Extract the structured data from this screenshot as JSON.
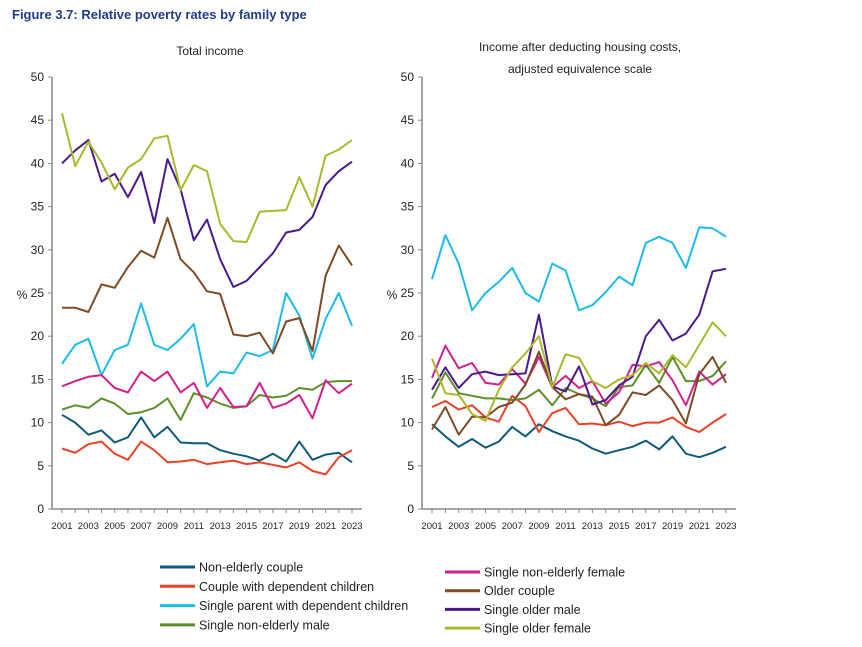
{
  "figure_title": "Figure 3.7: Relative poverty rates by family type",
  "series_styles": [
    {
      "name": "Non-elderly couple",
      "color": "#0f5a7c"
    },
    {
      "name": "Couple with dependent children",
      "color": "#ea4128"
    },
    {
      "name": "Single parent with dependent children",
      "color": "#1fbbe8"
    },
    {
      "name": "Single non-elderly male",
      "color": "#5a8f2a"
    },
    {
      "name": "Single non-elderly female",
      "color": "#d2208c"
    },
    {
      "name": "Older couple",
      "color": "#7d4b25"
    },
    {
      "name": "Single older male",
      "color": "#4b1a8a"
    },
    {
      "name": "Single older female",
      "color": "#a9b92b"
    }
  ],
  "chart_data": [
    {
      "type": "line",
      "title": "Total income",
      "ylabel": "%",
      "ylim": [
        0,
        50
      ],
      "yticks": [
        0,
        5,
        10,
        15,
        20,
        25,
        30,
        35,
        40,
        45,
        50
      ],
      "x": [
        2001,
        2002,
        2003,
        2004,
        2005,
        2006,
        2007,
        2008,
        2009,
        2010,
        2011,
        2012,
        2013,
        2014,
        2015,
        2016,
        2017,
        2018,
        2019,
        2020,
        2021,
        2022,
        2023
      ],
      "xticks": [
        "2001",
        "2003",
        "2005",
        "2007",
        "2009",
        "2011",
        "2013",
        "2015",
        "2017",
        "2019",
        "2021",
        "2023"
      ],
      "grid": false,
      "series": [
        {
          "name": "Non-elderly couple",
          "values": [
            10.9,
            10.0,
            8.6,
            9.1,
            7.7,
            8.3,
            10.6,
            8.3,
            9.5,
            7.7,
            7.6,
            7.6,
            6.8,
            6.4,
            6.1,
            5.6,
            6.4,
            5.5,
            7.8,
            5.7,
            6.3,
            6.5,
            5.4
          ]
        },
        {
          "name": "Couple with dependent children",
          "values": [
            7.0,
            6.5,
            7.5,
            7.8,
            6.4,
            5.7,
            7.8,
            6.8,
            5.4,
            5.5,
            5.7,
            5.2,
            5.4,
            5.6,
            5.2,
            5.4,
            5.1,
            4.8,
            5.4,
            4.4,
            4.0,
            6.0,
            6.8
          ]
        },
        {
          "name": "Single parent with dependent children",
          "values": [
            16.8,
            19.0,
            19.7,
            15.5,
            18.4,
            19.0,
            23.8,
            19.0,
            18.4,
            19.7,
            21.4,
            14.2,
            15.9,
            15.7,
            18.1,
            17.7,
            18.4,
            25.0,
            22.4,
            17.4,
            22.0,
            25.0,
            21.2
          ]
        },
        {
          "name": "Single non-elderly male",
          "values": [
            11.5,
            12.0,
            11.7,
            12.8,
            12.2,
            11.0,
            11.2,
            11.7,
            12.8,
            10.3,
            13.4,
            12.9,
            12.2,
            11.7,
            11.9,
            13.2,
            12.9,
            13.1,
            14.0,
            13.8,
            14.7,
            14.8,
            14.8
          ]
        },
        {
          "name": "Single non-elderly female",
          "values": [
            14.2,
            14.8,
            15.3,
            15.5,
            14.0,
            13.5,
            15.9,
            14.8,
            15.9,
            13.5,
            14.6,
            11.7,
            14.0,
            11.8,
            11.9,
            14.6,
            11.7,
            12.2,
            13.2,
            10.5,
            14.9,
            13.4,
            14.5
          ]
        },
        {
          "name": "Older couple",
          "values": [
            23.3,
            23.3,
            22.8,
            26.0,
            25.6,
            28.0,
            29.9,
            29.1,
            33.7,
            28.9,
            27.4,
            25.2,
            24.9,
            20.2,
            20.0,
            20.4,
            18.0,
            21.7,
            22.1,
            18.3,
            27.0,
            30.5,
            28.2
          ]
        },
        {
          "name": "Single older male",
          "values": [
            40.0,
            41.5,
            42.7,
            37.9,
            38.8,
            36.1,
            39.0,
            33.1,
            40.5,
            37.0,
            31.1,
            33.5,
            28.9,
            25.7,
            26.4,
            28.0,
            29.6,
            32.0,
            32.3,
            33.8,
            37.5,
            39.1,
            40.2
          ]
        },
        {
          "name": "Single older female",
          "values": [
            45.8,
            39.7,
            42.5,
            40.1,
            37.0,
            39.5,
            40.5,
            42.9,
            43.2,
            36.9,
            39.8,
            39.1,
            33.0,
            31.0,
            30.9,
            34.4,
            34.5,
            34.6,
            38.4,
            35.0,
            40.9,
            41.6,
            42.7
          ]
        }
      ]
    },
    {
      "type": "line",
      "title": "Income after deducting housing costs,",
      "title_line2": "adjusted equivalence scale",
      "ylabel": "%",
      "ylim": [
        0,
        50
      ],
      "yticks": [
        0,
        5,
        10,
        15,
        20,
        25,
        30,
        35,
        40,
        45,
        50
      ],
      "x": [
        2001,
        2002,
        2003,
        2004,
        2005,
        2006,
        2007,
        2008,
        2009,
        2010,
        2011,
        2012,
        2013,
        2014,
        2015,
        2016,
        2017,
        2018,
        2019,
        2020,
        2021,
        2022,
        2023
      ],
      "xticks": [
        "2001",
        "2003",
        "2005",
        "2007",
        "2009",
        "2011",
        "2013",
        "2015",
        "2017",
        "2019",
        "2021",
        "2023"
      ],
      "grid": false,
      "series": [
        {
          "name": "Non-elderly couple",
          "values": [
            9.8,
            8.4,
            7.2,
            8.1,
            7.1,
            7.8,
            9.5,
            8.4,
            9.8,
            9.0,
            8.4,
            7.9,
            7.0,
            6.4,
            6.8,
            7.2,
            7.9,
            6.9,
            8.4,
            6.4,
            6.0,
            6.5,
            7.2
          ]
        },
        {
          "name": "Couple with dependent children",
          "values": [
            11.8,
            12.5,
            11.5,
            12.0,
            10.6,
            10.1,
            13.1,
            11.9,
            8.9,
            11.1,
            11.7,
            9.8,
            9.9,
            9.7,
            10.1,
            9.6,
            10.0,
            10.0,
            10.6,
            9.5,
            8.9,
            10.0,
            11.0
          ]
        },
        {
          "name": "Single parent with dependent children",
          "values": [
            26.6,
            31.7,
            28.4,
            23.0,
            25.0,
            26.3,
            27.9,
            25.0,
            24.0,
            28.4,
            27.6,
            23.0,
            23.6,
            25.1,
            26.9,
            25.9,
            30.8,
            31.5,
            30.8,
            27.9,
            32.6,
            32.5,
            31.5
          ]
        },
        {
          "name": "Single non-elderly male",
          "values": [
            12.8,
            15.8,
            13.4,
            13.1,
            12.8,
            12.8,
            12.6,
            12.8,
            13.8,
            12.0,
            14.0,
            13.3,
            12.8,
            11.9,
            14.1,
            14.3,
            16.7,
            14.6,
            17.6,
            14.8,
            14.8,
            15.4,
            17.1
          ]
        },
        {
          "name": "Single non-elderly female",
          "values": [
            15.2,
            18.9,
            16.3,
            16.9,
            14.6,
            14.4,
            16.2,
            14.5,
            17.6,
            14.1,
            15.4,
            14.0,
            14.8,
            12.2,
            13.5,
            16.7,
            16.5,
            17.0,
            14.9,
            12.0,
            15.9,
            14.4,
            15.6
          ]
        },
        {
          "name": "Older couple",
          "values": [
            9.2,
            11.8,
            8.6,
            10.7,
            10.6,
            11.8,
            12.3,
            14.4,
            18.2,
            14.1,
            12.7,
            13.3,
            13.0,
            9.7,
            10.9,
            13.5,
            13.2,
            14.3,
            12.6,
            9.9,
            15.6,
            17.6,
            14.6
          ]
        },
        {
          "name": "Single older male",
          "values": [
            13.8,
            16.4,
            14.0,
            15.6,
            15.9,
            15.5,
            15.6,
            15.7,
            22.5,
            14.2,
            13.6,
            16.5,
            12.1,
            12.6,
            14.3,
            15.3,
            20.0,
            21.9,
            19.5,
            20.3,
            22.5,
            27.5,
            27.8
          ]
        },
        {
          "name": "Single older female",
          "values": [
            17.4,
            13.4,
            13.2,
            11.0,
            10.2,
            13.8,
            16.4,
            18.0,
            20.0,
            14.1,
            17.9,
            17.5,
            14.8,
            14.0,
            15.0,
            15.5,
            16.9,
            15.7,
            17.8,
            16.4,
            19.0,
            21.6,
            20.0
          ]
        }
      ]
    }
  ],
  "legend": {
    "left": [
      "Non-elderly couple",
      "Couple with dependent children",
      "Single parent with dependent children",
      "Single non-elderly male"
    ],
    "right": [
      "Single non-elderly female",
      "Older couple",
      "Single older male",
      "Single older female"
    ]
  }
}
